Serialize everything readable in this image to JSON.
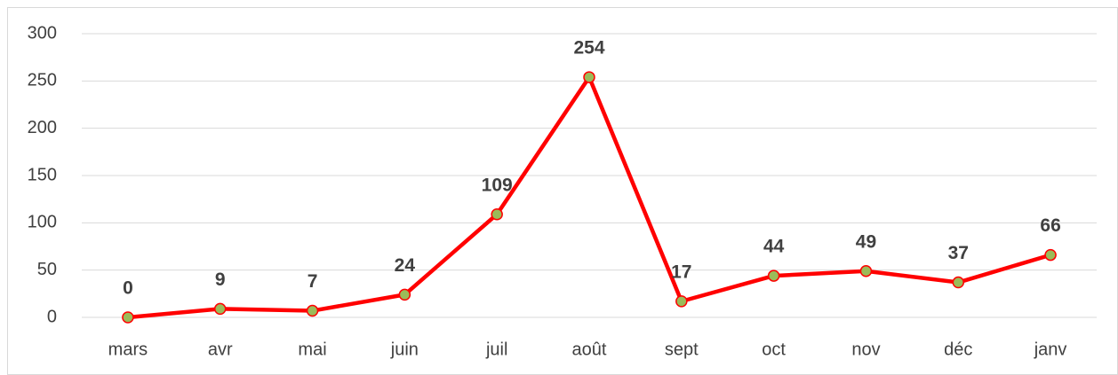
{
  "chart_data": {
    "type": "line",
    "categories": [
      "mars",
      "avr",
      "mai",
      "juin",
      "juil",
      "août",
      "sept",
      "oct",
      "nov",
      "déc",
      "janv"
    ],
    "series": [
      {
        "color": "#ff0000",
        "marker_color": "#9bbb59",
        "values": [
          0,
          9,
          7,
          24,
          109,
          254,
          17,
          44,
          49,
          37,
          66
        ]
      }
    ],
    "ylim": [
      0,
      300
    ],
    "yticks": [
      0,
      50,
      100,
      150,
      200,
      250,
      300
    ],
    "grid": true,
    "data_labels": true
  }
}
